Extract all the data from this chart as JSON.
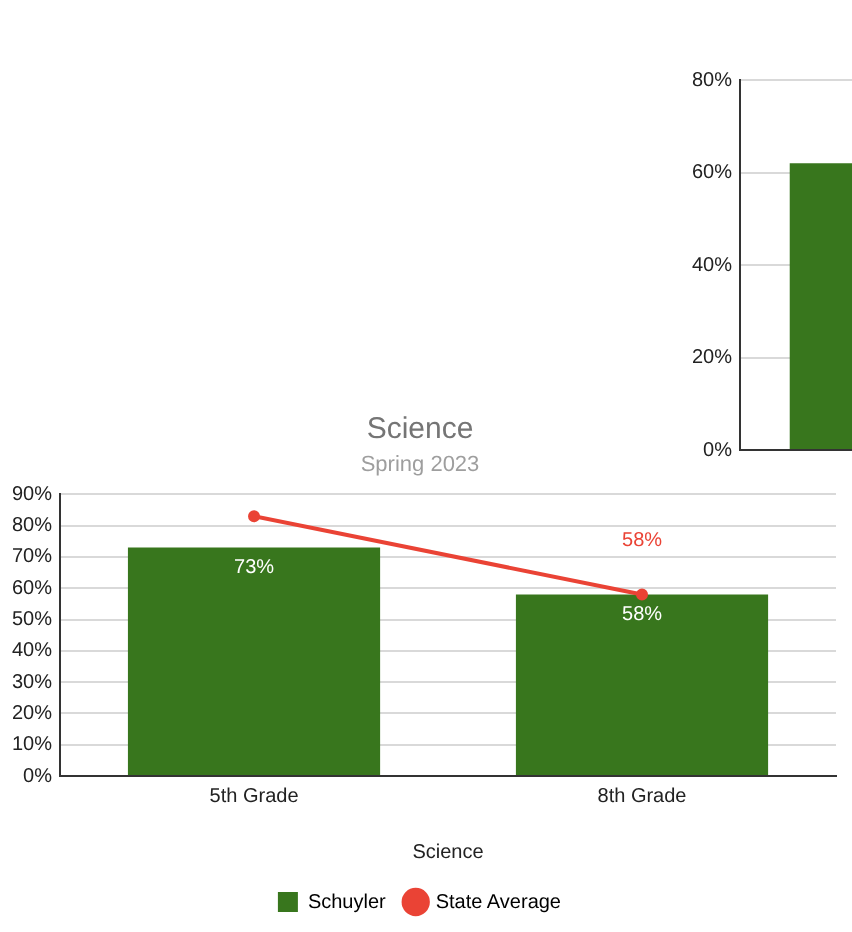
{
  "chart_data": [
    {
      "type": "bar",
      "title": "Science",
      "subtitle": "Spring 2023",
      "xlabel": "Science",
      "categories": [
        "5th Grade",
        "8th Grade"
      ],
      "series": [
        {
          "name": "Schuyler",
          "color": "#38761d",
          "values": [
            73,
            58
          ],
          "value_labels": [
            "73%",
            "58%"
          ]
        },
        {
          "name": "State Average",
          "type": "line",
          "color": "#ea4335",
          "values": [
            83,
            58
          ],
          "value_labels": [
            null,
            "58%"
          ]
        }
      ],
      "ylim": [
        0,
        90
      ],
      "yticks": [
        {
          "value": 0,
          "label": "0%"
        },
        {
          "value": 10,
          "label": "10%"
        },
        {
          "value": 20,
          "label": "20%"
        },
        {
          "value": 30,
          "label": "30%"
        },
        {
          "value": 40,
          "label": "40%"
        },
        {
          "value": 50,
          "label": "50%"
        },
        {
          "value": 60,
          "label": "60%"
        },
        {
          "value": 70,
          "label": "70%"
        },
        {
          "value": 80,
          "label": "80%"
        },
        {
          "value": 90,
          "label": "90%"
        }
      ],
      "grid": "y",
      "legend": "bottom",
      "marker": "circle"
    },
    {
      "type": "bar",
      "categories": [
        null
      ],
      "series": [
        {
          "color": "#38761d",
          "values": [
            62
          ]
        }
      ],
      "ylim": [
        0,
        80
      ],
      "yticks": [
        {
          "value": 0,
          "label": "0%"
        },
        {
          "value": 20,
          "label": "20%"
        },
        {
          "value": 40,
          "label": "40%"
        },
        {
          "value": 60,
          "label": "60%"
        },
        {
          "value": 80,
          "label": "80%"
        }
      ],
      "grid": "y"
    }
  ]
}
